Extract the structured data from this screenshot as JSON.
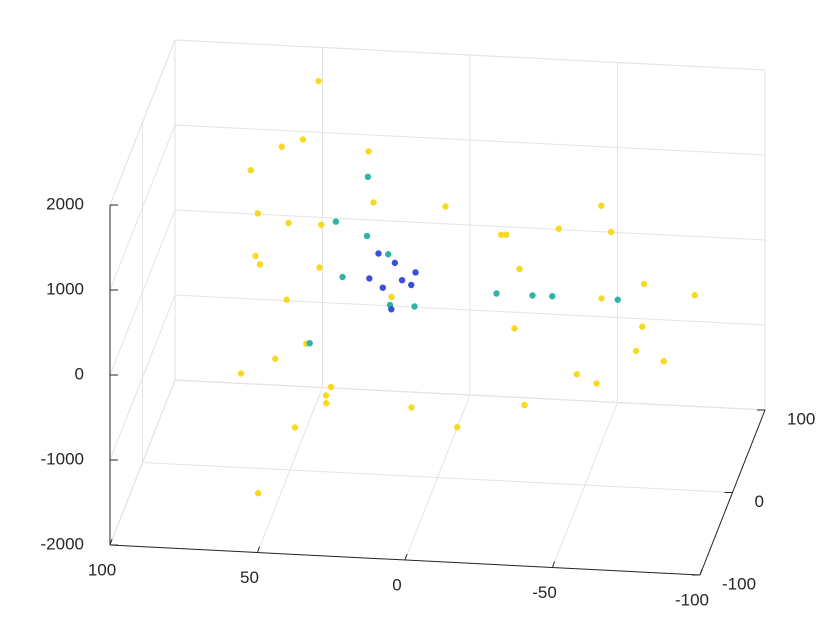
{
  "chart_data": {
    "type": "scatter3d",
    "xlim": [
      100,
      -100
    ],
    "ylim": [
      -100,
      100
    ],
    "zlim": [
      -2000,
      2000
    ],
    "xticks": [
      100,
      50,
      0,
      -50,
      -100
    ],
    "yticks": [
      -100,
      0,
      100
    ],
    "zticks": [
      -2000,
      -1000,
      0,
      1000,
      2000
    ],
    "grid": true,
    "series": [
      {
        "color": "#f7d923",
        "x": [
          60,
          55,
          50,
          45,
          62,
          58,
          65,
          60,
          55,
          50,
          45,
          40,
          35,
          30,
          35,
          25,
          40,
          50,
          30,
          20,
          48,
          52,
          -20,
          -30,
          -40,
          -50,
          -60,
          -70,
          -85,
          -80,
          -65,
          -55,
          -45,
          -35,
          -25,
          -15,
          -50,
          -75,
          0,
          5,
          -10
        ],
        "y": [
          -30,
          20,
          40,
          -50,
          10,
          -20,
          30,
          -60,
          0,
          50,
          -30,
          20,
          -10,
          60,
          -40,
          30,
          0,
          -10,
          -70,
          40,
          70,
          -80,
          30,
          -20,
          10,
          50,
          -40,
          0,
          20,
          -30,
          40,
          -10,
          20,
          -50,
          10,
          60,
          80,
          -70,
          -80,
          70,
          -30
        ],
        "z": [
          1800,
          1600,
          1500,
          1400,
          900,
          600,
          200,
          -300,
          -700,
          -1000,
          -1200,
          -1300,
          -900,
          1200,
          1300,
          900,
          400,
          100,
          -500,
          -300,
          1900,
          -1500,
          600,
          700,
          900,
          800,
          600,
          400,
          100,
          -200,
          -500,
          -700,
          -900,
          -600,
          -300,
          300,
          200,
          300,
          -400,
          500,
          -1100
        ]
      },
      {
        "color": "#2fb5a5",
        "x": [
          25,
          30,
          20,
          35,
          15,
          -20,
          -40,
          -30,
          28,
          40,
          -60,
          10
        ],
        "y": [
          10,
          -20,
          30,
          5,
          -10,
          0,
          -10,
          20,
          40,
          -30,
          10,
          20
        ],
        "z": [
          700,
          500,
          300,
          900,
          100,
          200,
          300,
          0,
          1100,
          -200,
          100,
          -200
        ]
      },
      {
        "color": "#3d4fd9",
        "x": [
          12,
          15,
          18,
          10,
          20,
          22,
          14,
          8
        ],
        "y": [
          0,
          5,
          -5,
          10,
          0,
          -10,
          -15,
          5
        ],
        "z": [
          300,
          450,
          250,
          150,
          600,
          400,
          100,
          350
        ]
      }
    ]
  }
}
